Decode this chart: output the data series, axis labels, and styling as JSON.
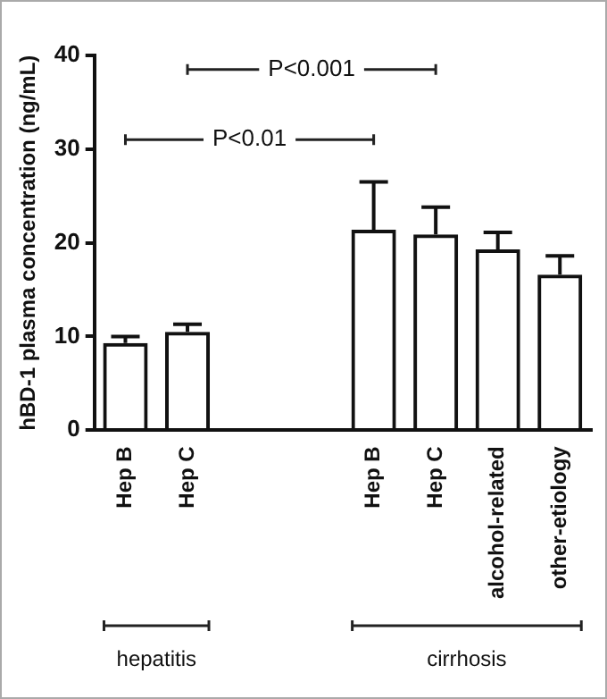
{
  "chart_data": {
    "type": "bar",
    "ylabel": "hBD-1 plasma concentration (ng/mL)",
    "categories": [
      "Hep B",
      "Hep C",
      null,
      null,
      "Hep B",
      "Hep C",
      "alcohol-related",
      "other-etiology"
    ],
    "values": [
      9.3,
      10.5,
      null,
      null,
      21.4,
      20.9,
      19.3,
      16.6
    ],
    "errors": [
      0.7,
      0.8,
      null,
      null,
      5.1,
      2.9,
      1.8,
      2.0
    ],
    "color": "#111111",
    "ylim": [
      0,
      40
    ],
    "yticks": [
      0,
      10,
      20,
      30,
      40
    ],
    "grid": false,
    "legend": false,
    "annotations": [
      "P<0.01",
      "P<0.001",
      "hepatitis",
      "cirrhosis"
    ]
  }
}
